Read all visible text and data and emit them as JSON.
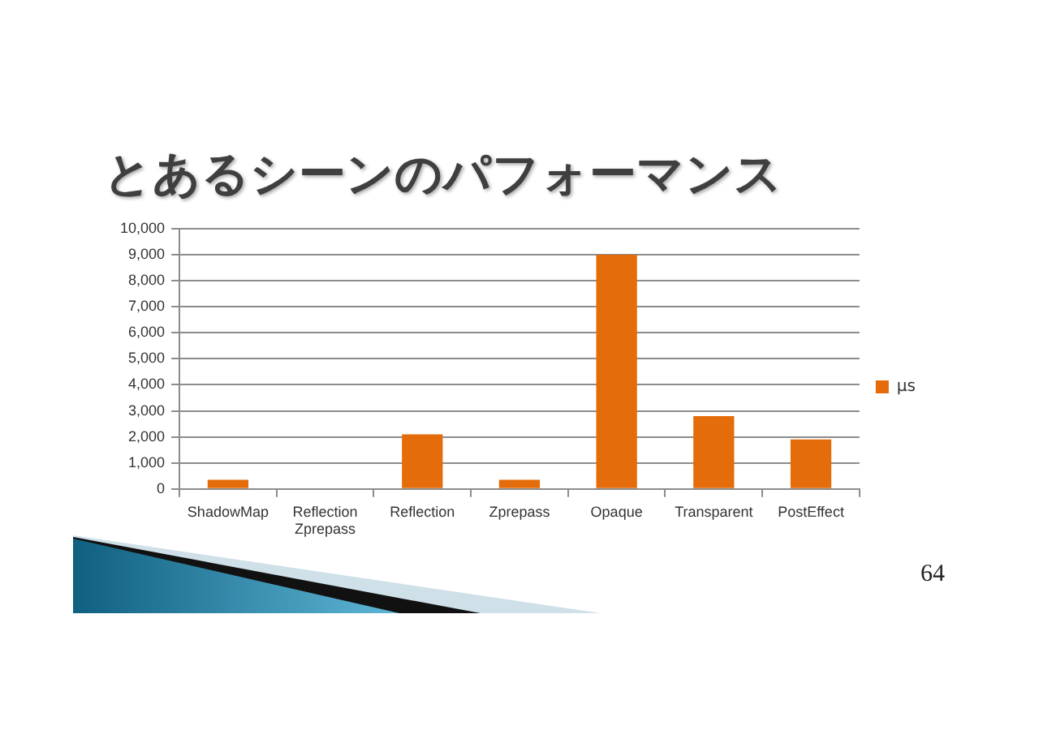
{
  "chart_data": {
    "type": "bar",
    "title": "とあるシーンのパフォーマンス",
    "categories": [
      "ShadowMap",
      "Reflection Zprepass",
      "Reflection",
      "Zprepass",
      "Opaque",
      "Transparent",
      "PostEffect"
    ],
    "series": [
      {
        "name": "μs",
        "color": "#e46c0a",
        "values": [
          350,
          0,
          2100,
          350,
          9000,
          2800,
          1900
        ]
      }
    ],
    "ylim": [
      0,
      10000
    ],
    "yticks": [
      0,
      {
        "value": 1000,
        "label": "1,000"
      },
      {
        "value": 2000,
        "label": "2,000"
      },
      {
        "value": 3000,
        "label": "3,000"
      },
      {
        "value": 4000,
        "label": "4,000"
      },
      {
        "value": 5000,
        "label": "5,000"
      },
      {
        "value": 6000,
        "label": "6,000"
      },
      {
        "value": 7000,
        "label": "7,000"
      },
      {
        "value": 8000,
        "label": "8,000"
      },
      {
        "value": 9000,
        "label": "9,000"
      },
      {
        "value": 10000,
        "label": "10,000"
      }
    ],
    "grid": "y",
    "legend": "right",
    "annotations": [
      "64"
    ]
  }
}
